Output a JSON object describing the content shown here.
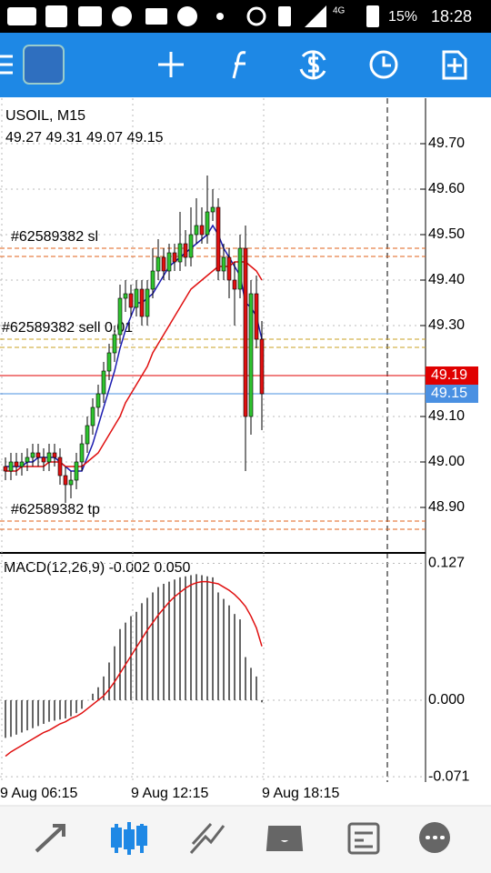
{
  "status_bar": {
    "network": "4G",
    "battery": "15%",
    "time": "18:28"
  },
  "chart_data": [
    {
      "type": "candlestick",
      "title": "USOIL, M15",
      "subtitle": "49.27 49.31 49.07 49.15",
      "open": [
        48.99,
        48.98,
        49.0,
        48.99,
        49.0,
        49.01,
        49.02,
        49.01,
        49.0,
        49.02,
        49.01,
        48.97,
        48.95,
        48.96,
        49.0,
        49.04,
        49.08,
        49.12,
        49.15,
        49.2,
        49.24,
        49.28,
        49.36,
        49.37,
        49.34,
        49.38,
        49.32,
        49.38,
        49.42,
        49.45,
        49.42,
        49.46,
        49.44,
        49.48,
        49.45,
        49.5,
        49.52,
        49.5,
        49.55,
        49.56,
        49.42,
        49.45,
        49.4,
        49.38,
        49.47,
        49.1,
        49.37,
        49.27
      ],
      "high": [
        49.01,
        49.02,
        49.02,
        49.02,
        49.03,
        49.04,
        49.04,
        49.03,
        49.04,
        49.04,
        49.03,
        48.99,
        48.98,
        49.02,
        49.06,
        49.1,
        49.14,
        49.17,
        49.22,
        49.26,
        49.3,
        49.39,
        49.4,
        49.39,
        49.4,
        49.4,
        49.4,
        49.47,
        49.49,
        49.47,
        49.48,
        49.48,
        49.55,
        49.51,
        49.56,
        49.58,
        49.56,
        49.63,
        49.6,
        49.58,
        49.48,
        49.47,
        49.44,
        49.5,
        49.52,
        49.4,
        49.41,
        49.31
      ],
      "low": [
        48.96,
        48.96,
        48.97,
        48.97,
        48.98,
        48.99,
        48.99,
        48.98,
        48.98,
        48.99,
        48.95,
        48.91,
        48.92,
        48.94,
        48.98,
        49.02,
        49.06,
        49.1,
        49.13,
        49.18,
        49.22,
        49.26,
        49.33,
        49.32,
        49.32,
        49.3,
        49.3,
        49.36,
        49.4,
        49.4,
        49.4,
        49.42,
        49.42,
        49.43,
        49.43,
        49.48,
        49.48,
        49.48,
        49.53,
        49.4,
        49.4,
        49.36,
        49.3,
        49.36,
        48.98,
        49.06,
        49.25,
        49.07
      ],
      "close": [
        48.98,
        49.0,
        48.99,
        49.0,
        49.01,
        49.02,
        49.01,
        49.0,
        49.02,
        49.01,
        48.97,
        48.95,
        48.96,
        49.0,
        49.04,
        49.08,
        49.12,
        49.15,
        49.2,
        49.24,
        49.28,
        49.36,
        49.37,
        49.34,
        49.38,
        49.32,
        49.38,
        49.42,
        49.45,
        49.42,
        49.46,
        49.44,
        49.48,
        49.45,
        49.5,
        49.52,
        49.5,
        49.55,
        49.56,
        49.42,
        49.45,
        49.4,
        49.38,
        49.47,
        49.1,
        49.37,
        49.27,
        49.15
      ],
      "up_color": "#2fc42f",
      "down_color": "#e01010",
      "series": [
        {
          "color": "#1c1cb0",
          "values": [
            48.99,
            48.99,
            48.99,
            48.99,
            49.0,
            49.0,
            49.01,
            49.01,
            49.01,
            49.01,
            49.0,
            48.99,
            48.98,
            48.98,
            48.98,
            49.01,
            49.04,
            49.08,
            49.12,
            49.16,
            49.2,
            49.25,
            49.29,
            49.32,
            49.35,
            49.35,
            49.36,
            49.37,
            49.39,
            49.41,
            49.43,
            49.44,
            49.45,
            49.46,
            49.47,
            49.48,
            49.49,
            49.5,
            49.52,
            49.5,
            49.47,
            49.45,
            49.43,
            49.41,
            49.35,
            49.34,
            49.32,
            49.27
          ]
        },
        {
          "color": "#e01010",
          "values": [
            48.98,
            48.98,
            48.98,
            48.99,
            48.99,
            48.99,
            48.99,
            48.99,
            49.0,
            49.0,
            49.0,
            48.99,
            48.99,
            48.99,
            48.99,
            49.0,
            49.01,
            49.02,
            49.04,
            49.06,
            49.08,
            49.1,
            49.13,
            49.15,
            49.17,
            49.19,
            49.21,
            49.24,
            49.26,
            49.28,
            49.3,
            49.32,
            49.34,
            49.36,
            49.38,
            49.39,
            49.4,
            49.41,
            49.42,
            49.43,
            49.43,
            49.43,
            49.44,
            49.44,
            49.44,
            49.43,
            49.42,
            49.4
          ]
        }
      ],
      "order_lines": [
        {
          "label": "#62589382 sl",
          "value": 49.47,
          "color": "#e0601a"
        },
        {
          "label": "#62589382 sell 0.01",
          "value": 49.27,
          "color": "#c8a020"
        },
        {
          "label": "#62589382 tp",
          "value": 48.87,
          "color": "#e0601a"
        }
      ],
      "ask": 49.19,
      "ask_color": "#e00000",
      "bid": 49.15,
      "bid_color": "#4a90e2",
      "xlim": [
        -1,
        77
      ],
      "ylim": [
        48.8,
        49.8
      ],
      "xticks": [
        {
          "value": 0,
          "label": "9 Aug 06:15"
        },
        {
          "value": 24,
          "label": "9 Aug 12:15"
        },
        {
          "value": 48,
          "label": "9 Aug 18:15"
        }
      ],
      "yticks": [
        {
          "value": 49.7,
          "label": "49.70"
        },
        {
          "value": 49.6,
          "label": "49.60"
        },
        {
          "value": 49.5,
          "label": "49.50"
        },
        {
          "value": 49.4,
          "label": "49.40"
        },
        {
          "value": 49.3,
          "label": "49.30"
        },
        {
          "value": 49.1,
          "label": "49.10"
        },
        {
          "value": 49,
          "label": "49.00"
        },
        {
          "value": 48.9,
          "label": "48.90"
        }
      ],
      "grid": true
    },
    {
      "type": "macd",
      "title": "MACD(12,26,9) -0.002 0.050",
      "values": [
        -0.035,
        -0.034,
        -0.032,
        -0.03,
        -0.028,
        -0.026,
        -0.024,
        -0.022,
        -0.02,
        -0.019,
        -0.018,
        -0.017,
        -0.015,
        -0.012,
        -0.008,
        0.0,
        0.006,
        0.012,
        0.022,
        0.035,
        0.05,
        0.066,
        0.072,
        0.078,
        0.082,
        0.09,
        0.095,
        0.1,
        0.105,
        0.108,
        0.11,
        0.112,
        0.114,
        0.115,
        0.116,
        0.117,
        0.116,
        0.115,
        0.114,
        0.1,
        0.094,
        0.088,
        0.08,
        0.075,
        0.04,
        0.03,
        0.022,
        -0.002
      ],
      "color": "#000000",
      "series": [
        {
          "color": "#e01010",
          "values": [
            -0.052,
            -0.048,
            -0.045,
            -0.042,
            -0.039,
            -0.036,
            -0.033,
            -0.03,
            -0.028,
            -0.025,
            -0.022,
            -0.02,
            -0.017,
            -0.015,
            -0.012,
            -0.008,
            -0.004,
            0.0,
            0.004,
            0.01,
            0.017,
            0.025,
            0.033,
            0.041,
            0.049,
            0.057,
            0.065,
            0.072,
            0.079,
            0.085,
            0.091,
            0.096,
            0.1,
            0.104,
            0.107,
            0.109,
            0.11,
            0.11,
            0.109,
            0.108,
            0.105,
            0.102,
            0.098,
            0.093,
            0.087,
            0.078,
            0.067,
            0.05
          ]
        }
      ],
      "xlim": [
        -1,
        77
      ],
      "ylim": [
        -0.076,
        0.135
      ],
      "yticks": [
        0.127,
        {
          "value": 0,
          "label": "0.000"
        },
        -0.071
      ]
    }
  ]
}
